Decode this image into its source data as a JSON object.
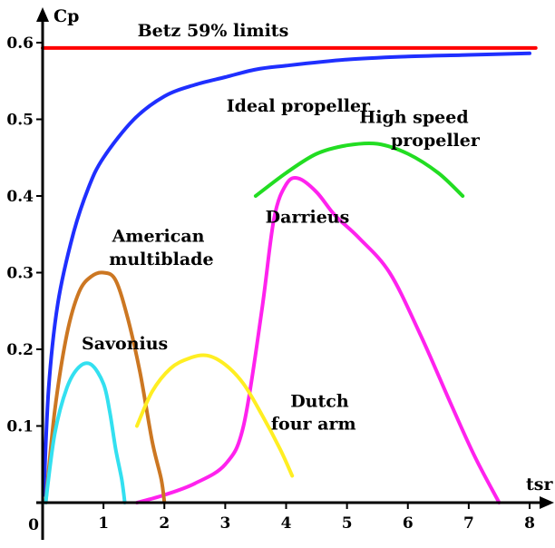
{
  "chart_data": {
    "type": "line",
    "title": "",
    "xlabel": "tsr",
    "ylabel": "Cp",
    "xlim": [
      0,
      8
    ],
    "ylim": [
      0,
      0.6
    ],
    "x_ticks": [
      0,
      1,
      2,
      3,
      4,
      5,
      6,
      7,
      8
    ],
    "y_ticks": [
      0.1,
      0.2,
      0.3,
      0.4,
      0.5,
      0.6
    ],
    "x_tick_labels": [
      "0",
      "1",
      "2",
      "3",
      "4",
      "5",
      "6",
      "7",
      "8"
    ],
    "y_tick_labels": [
      "0.1",
      "0.2",
      "0.3",
      "0.4",
      "0.5",
      "0.6"
    ],
    "grid": false,
    "legend": "none",
    "series": [
      {
        "name": "Betz 59% limits",
        "color": "#ff0000",
        "x": [
          0,
          8.1
        ],
        "y": [
          0.593,
          0.593
        ]
      },
      {
        "name": "Ideal propeller",
        "color": "#1f2fff",
        "x": [
          0.02,
          0.1,
          0.25,
          0.5,
          0.75,
          1.0,
          1.5,
          2.0,
          2.5,
          3.0,
          3.5,
          4.0,
          5.0,
          6.0,
          7.0,
          8.0
        ],
        "y": [
          0.01,
          0.15,
          0.26,
          0.35,
          0.41,
          0.45,
          0.5,
          0.53,
          0.545,
          0.555,
          0.565,
          0.57,
          0.578,
          0.582,
          0.584,
          0.586
        ]
      },
      {
        "name": "High speed propeller",
        "color": "#22dd22",
        "x": [
          3.5,
          4.0,
          4.5,
          5.0,
          5.5,
          6.0,
          6.5,
          6.9
        ],
        "y": [
          0.4,
          0.43,
          0.455,
          0.466,
          0.468,
          0.455,
          0.43,
          0.4
        ]
      },
      {
        "name": "Darrieus",
        "color": "#ff22ee",
        "x": [
          1.55,
          2.0,
          2.5,
          3.0,
          3.3,
          3.6,
          3.8,
          4.0,
          4.2,
          4.5,
          4.8,
          5.2,
          5.7,
          6.2,
          6.7,
          7.1,
          7.5
        ],
        "y": [
          0.0,
          0.01,
          0.025,
          0.05,
          0.1,
          0.25,
          0.37,
          0.415,
          0.423,
          0.405,
          0.375,
          0.345,
          0.3,
          0.22,
          0.13,
          0.06,
          0.0
        ]
      },
      {
        "name": "American multiblade",
        "color": "#cc7722",
        "x": [
          0.05,
          0.2,
          0.4,
          0.6,
          0.8,
          1.0,
          1.2,
          1.4,
          1.6,
          1.8,
          1.95,
          2.0
        ],
        "y": [
          0.0,
          0.12,
          0.22,
          0.275,
          0.295,
          0.3,
          0.29,
          0.24,
          0.17,
          0.08,
          0.03,
          0.0
        ]
      },
      {
        "name": "Savonius",
        "color": "#33e0f0",
        "x": [
          0.05,
          0.2,
          0.4,
          0.6,
          0.8,
          1.0,
          1.1,
          1.2,
          1.3,
          1.35
        ],
        "y": [
          0.0,
          0.09,
          0.15,
          0.177,
          0.18,
          0.155,
          0.12,
          0.07,
          0.03,
          0.0
        ]
      },
      {
        "name": "Dutch four arm",
        "color": "#ffee22",
        "x": [
          1.55,
          1.8,
          2.1,
          2.4,
          2.7,
          3.0,
          3.3,
          3.6,
          3.9,
          4.1
        ],
        "y": [
          0.1,
          0.145,
          0.175,
          0.188,
          0.192,
          0.18,
          0.155,
          0.115,
          0.07,
          0.035
        ]
      }
    ],
    "labels": [
      {
        "text": "Betz 59% limits",
        "x": 2.8,
        "y": 0.608
      },
      {
        "text": "Ideal propeller",
        "x": 4.2,
        "y": 0.51
      },
      {
        "text": "High speed",
        "x": 6.1,
        "y": 0.495
      },
      {
        "text": "propeller",
        "x": 6.45,
        "y": 0.465
      },
      {
        "text": "Darrieus",
        "x": 4.35,
        "y": 0.365
      },
      {
        "text": "American",
        "x": 1.9,
        "y": 0.34
      },
      {
        "text": "multiblade",
        "x": 1.95,
        "y": 0.31
      },
      {
        "text": "Savonius",
        "x": 1.35,
        "y": 0.2
      },
      {
        "text": "Dutch",
        "x": 4.55,
        "y": 0.125
      },
      {
        "text": "four arm",
        "x": 4.45,
        "y": 0.095
      }
    ]
  }
}
